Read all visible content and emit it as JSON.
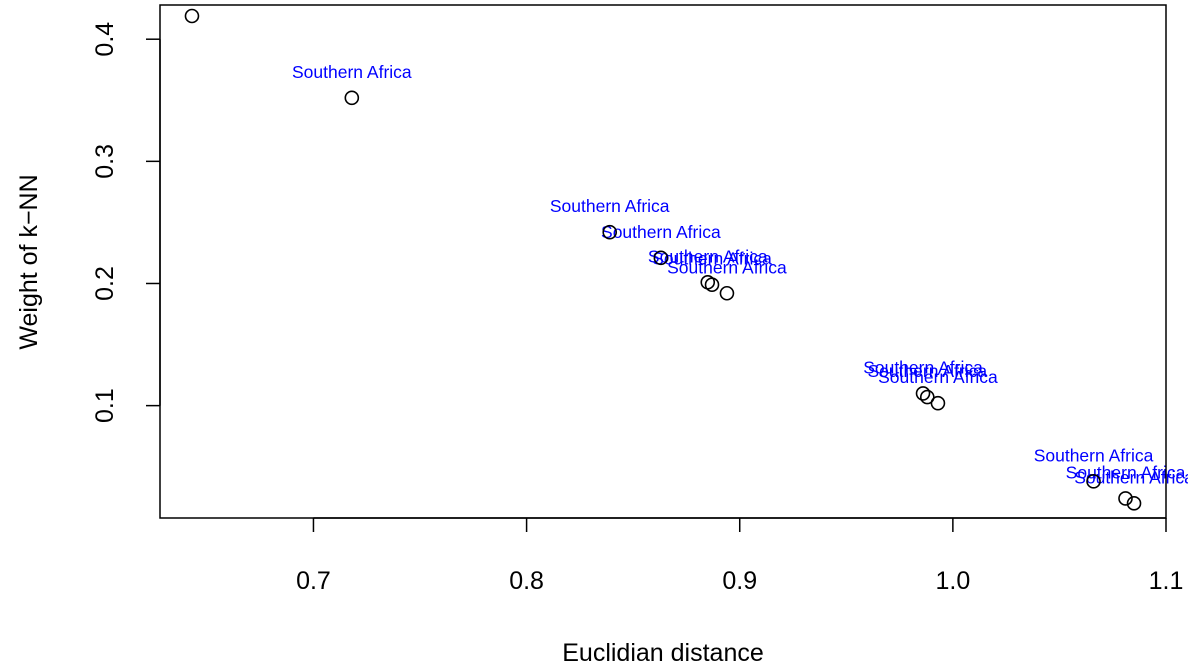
{
  "chart_data": {
    "type": "scatter",
    "xlabel": "Euclidian distance",
    "ylabel": "Weight of k−NN",
    "xlim": [
      0.628,
      1.1
    ],
    "ylim": [
      0.008,
      0.428
    ],
    "x_ticks": [
      {
        "value": 0.7,
        "label": "0.7"
      },
      {
        "value": 0.8,
        "label": "0.8"
      },
      {
        "value": 0.9,
        "label": "0.9"
      },
      {
        "value": 1.0,
        "label": "1.0"
      },
      {
        "value": 1.1,
        "label": "1.1"
      }
    ],
    "y_ticks": [
      {
        "value": 0.1,
        "label": "0.1"
      },
      {
        "value": 0.2,
        "label": "0.2"
      },
      {
        "value": 0.3,
        "label": "0.3"
      },
      {
        "value": 0.4,
        "label": "0.4"
      }
    ],
    "label_color": "#0000ff",
    "marker": "open-circle",
    "grid": false,
    "legend": false,
    "points": [
      {
        "x": 0.643,
        "y": 0.419,
        "label": ""
      },
      {
        "x": 0.718,
        "y": 0.352,
        "label": "Southern Africa"
      },
      {
        "x": 0.839,
        "y": 0.242,
        "label": "Southern Africa"
      },
      {
        "x": 0.863,
        "y": 0.221,
        "label": "Southern Africa"
      },
      {
        "x": 0.885,
        "y": 0.201,
        "label": "Southern Africa"
      },
      {
        "x": 0.887,
        "y": 0.199,
        "label": "Southern Africa"
      },
      {
        "x": 0.894,
        "y": 0.192,
        "label": "Southern Africa"
      },
      {
        "x": 0.986,
        "y": 0.11,
        "label": "Southern Africa"
      },
      {
        "x": 0.988,
        "y": 0.107,
        "label": "Southern Africa"
      },
      {
        "x": 0.993,
        "y": 0.102,
        "label": "Southern Africa"
      },
      {
        "x": 1.066,
        "y": 0.038,
        "label": "Southern Africa"
      },
      {
        "x": 1.081,
        "y": 0.024,
        "label": "Southern Africa"
      },
      {
        "x": 1.085,
        "y": 0.02,
        "label": "Southern Africa"
      }
    ]
  }
}
